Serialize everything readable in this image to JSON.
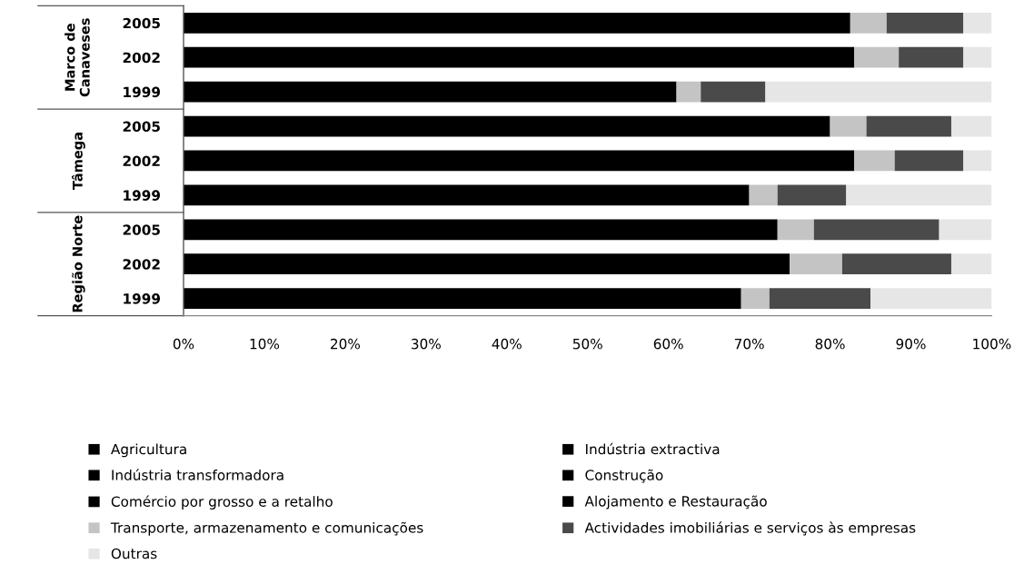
{
  "chart_data": {
    "type": "bar",
    "orientation": "horizontal",
    "stacked": true,
    "categories": [
      "2005",
      "2002",
      "1999",
      "2005",
      "2002",
      "1999",
      "2005",
      "2002",
      "1999"
    ],
    "annotations": [
      "Marco de Canaveses",
      "Tâmega",
      "Região Norte"
    ],
    "series": [
      {
        "name": "Agricultura",
        "color": "#000000",
        "values": [
          82.5,
          83.0,
          61.0,
          80.0,
          83.0,
          70.0,
          73.5,
          75.0,
          69.0
        ]
      },
      {
        "name": "Indústria extractiva",
        "color": "#000000",
        "values": [
          null,
          null,
          null,
          null,
          null,
          null,
          null,
          null,
          null
        ]
      },
      {
        "name": "Indústria transformadora",
        "color": "#000000",
        "values": [
          null,
          null,
          null,
          null,
          null,
          null,
          null,
          null,
          null
        ]
      },
      {
        "name": "Construção",
        "color": "#000000",
        "values": [
          null,
          null,
          null,
          null,
          null,
          null,
          null,
          null,
          null
        ]
      },
      {
        "name": "Comércio por grosso e a retalho",
        "color": "#000000",
        "values": [
          null,
          null,
          null,
          null,
          null,
          null,
          null,
          null,
          null
        ]
      },
      {
        "name": "Alojamento e Restauração",
        "color": "#000000",
        "values": [
          null,
          null,
          null,
          null,
          null,
          null,
          null,
          null,
          null
        ]
      },
      {
        "name": "Transporte, armazenamento e comunicações",
        "color": "#c4c4c4",
        "values": [
          4.5,
          5.5,
          3.0,
          4.5,
          5.0,
          3.5,
          4.5,
          6.5,
          3.5
        ]
      },
      {
        "name": "Actividades imobiliárias e serviços às empresas",
        "color": "#4a4a4a",
        "values": [
          9.5,
          8.0,
          8.0,
          10.5,
          8.5,
          8.5,
          15.5,
          13.5,
          12.5
        ]
      },
      {
        "name": "Outras",
        "color": "#e6e6e6",
        "values": [
          3.5,
          3.5,
          28.0,
          5.0,
          3.5,
          18.0,
          6.5,
          5.0,
          15.0
        ]
      }
    ],
    "xlim": [
      0,
      100
    ],
    "xticks": [
      {
        "value": 0,
        "label": "0%"
      },
      {
        "value": 10,
        "label": "10%"
      },
      {
        "value": 20,
        "label": "20%"
      },
      {
        "value": 30,
        "label": "30%"
      },
      {
        "value": 40,
        "label": "40%"
      },
      {
        "value": 50,
        "label": "50%"
      },
      {
        "value": 60,
        "label": "60%"
      },
      {
        "value": 70,
        "label": "70%"
      },
      {
        "value": 80,
        "label": "80%"
      },
      {
        "value": 90,
        "label": "90%"
      },
      {
        "value": 100,
        "label": "100%"
      }
    ],
    "grid": false,
    "legend": "bottom"
  }
}
